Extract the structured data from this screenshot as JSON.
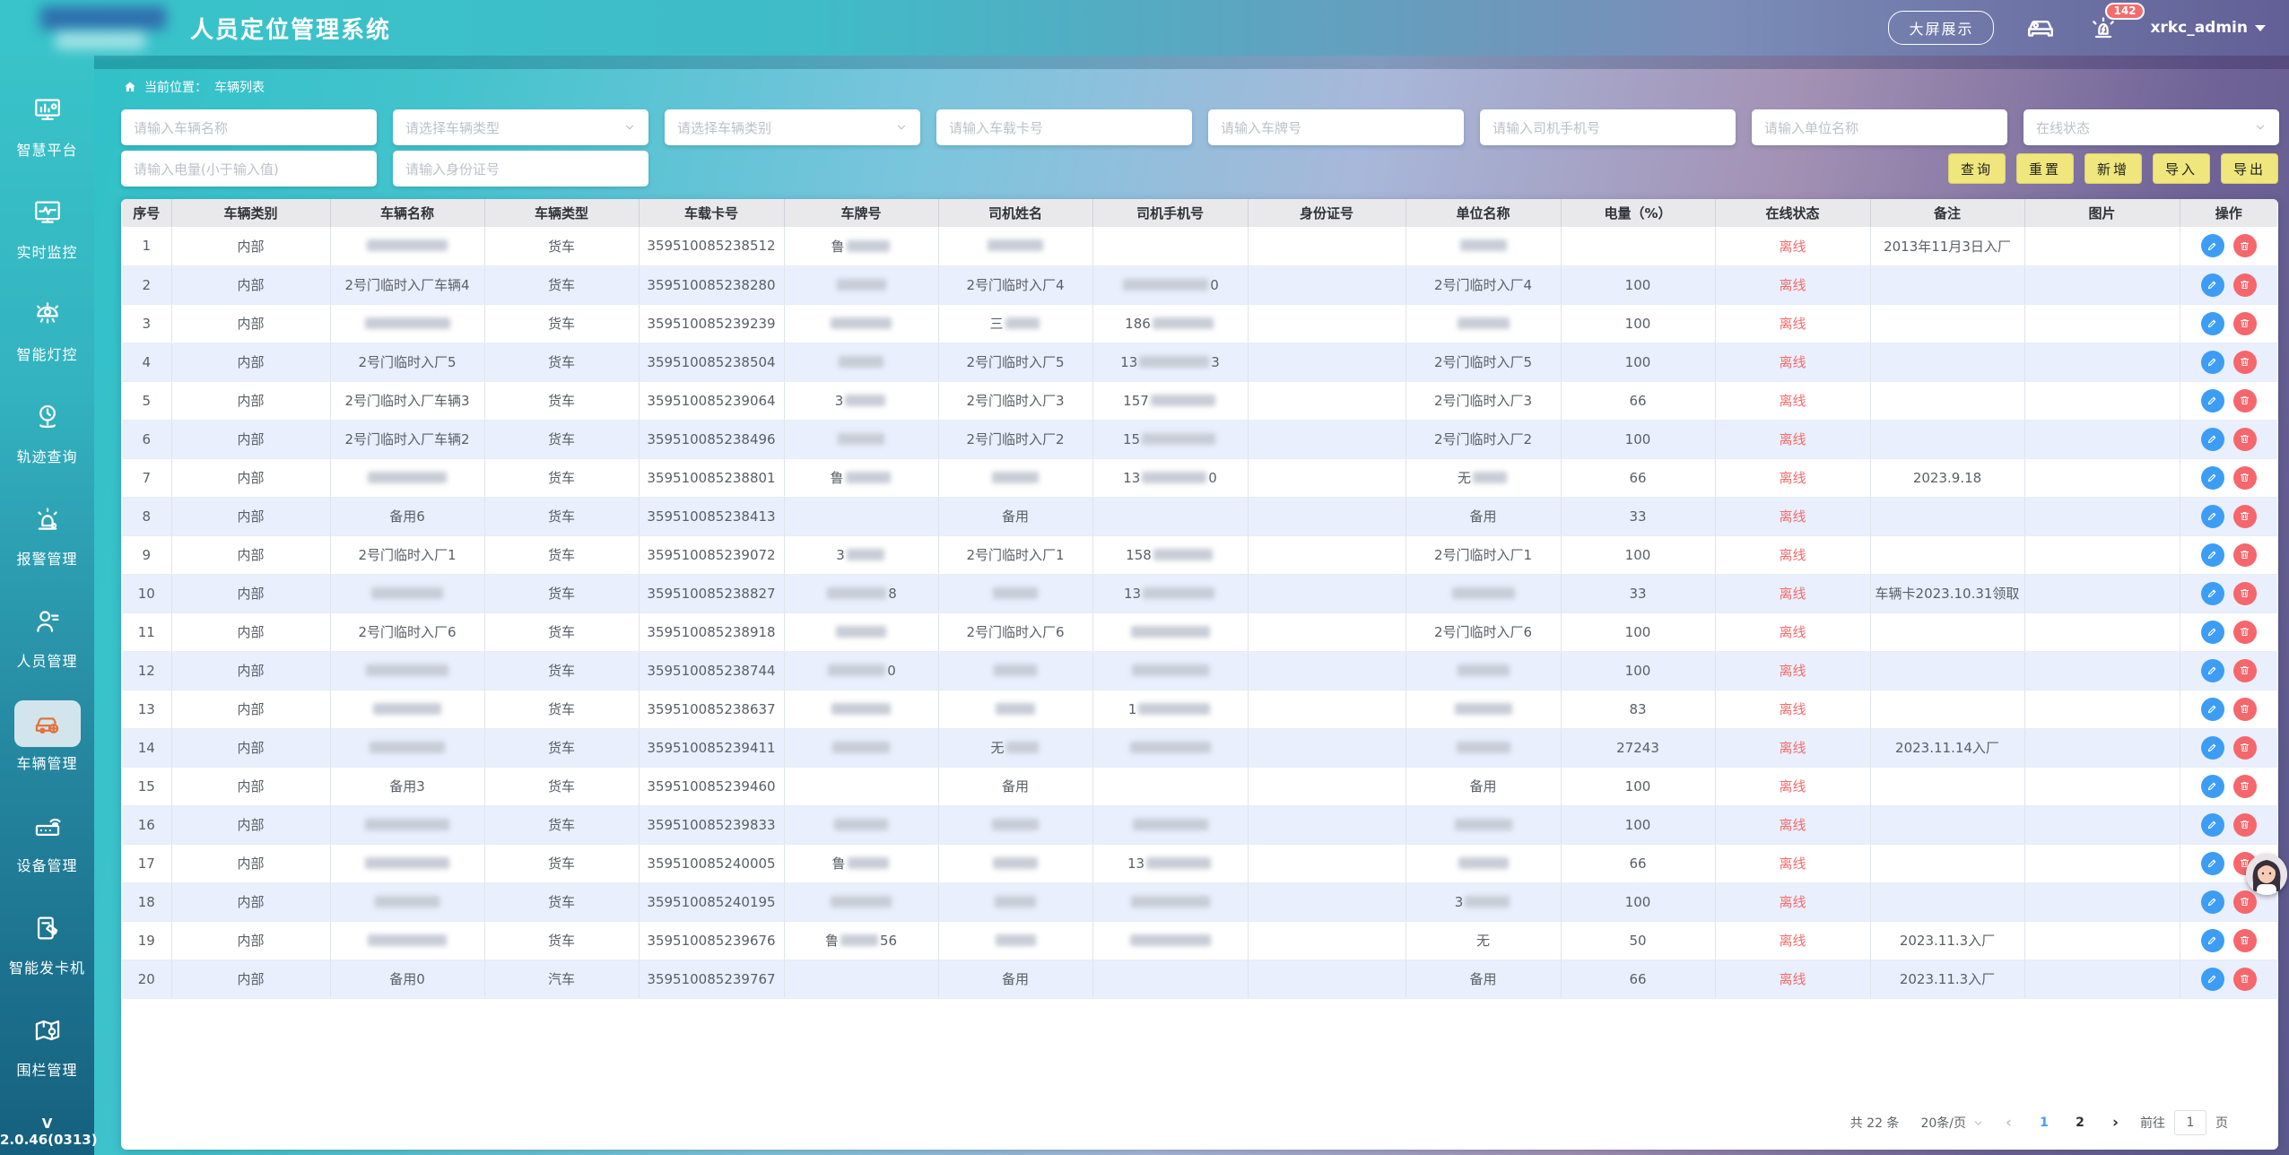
{
  "header": {
    "title": "人员定位管理系统",
    "big_screen_button": "大屏展示",
    "alarm_badge": "142",
    "username": "xrkc_admin",
    "icons": [
      "vehicle-monitor-icon",
      "alarm-siren-icon"
    ]
  },
  "sidebar": {
    "items": [
      {
        "label": "智慧平台",
        "icon": "dashboard-icon",
        "active": false
      },
      {
        "label": "实时监控",
        "icon": "monitor-icon",
        "active": false
      },
      {
        "label": "智能灯控",
        "icon": "light-icon",
        "active": false
      },
      {
        "label": "轨迹查询",
        "icon": "track-icon",
        "active": false
      },
      {
        "label": "报警管理",
        "icon": "alarm-icon",
        "active": false
      },
      {
        "label": "人员管理",
        "icon": "person-icon",
        "active": false
      },
      {
        "label": "车辆管理",
        "icon": "vehicle-icon",
        "active": true
      },
      {
        "label": "设备管理",
        "icon": "device-icon",
        "active": false
      },
      {
        "label": "智能发卡机",
        "icon": "card-machine-icon",
        "active": false
      },
      {
        "label": "围栏管理",
        "icon": "fence-icon",
        "active": false
      }
    ],
    "version": "V 2.0.46(0313)"
  },
  "breadcrumb": {
    "prefix": "当前位置：",
    "current": "车辆列表"
  },
  "filters": {
    "row1": [
      {
        "placeholder": "请输入车辆名称",
        "type": "input"
      },
      {
        "placeholder": "请选择车辆类型",
        "type": "select"
      },
      {
        "placeholder": "请选择车辆类别",
        "type": "select"
      },
      {
        "placeholder": "请输入车载卡号",
        "type": "input"
      },
      {
        "placeholder": "请输入车牌号",
        "type": "input"
      },
      {
        "placeholder": "请输入司机手机号",
        "type": "input"
      },
      {
        "placeholder": "请输入单位名称",
        "type": "input"
      },
      {
        "placeholder": "在线状态",
        "type": "select"
      }
    ],
    "row2": [
      {
        "placeholder": "请输入电量(小于输入值)",
        "type": "input"
      },
      {
        "placeholder": "请输入身份证号",
        "type": "input"
      }
    ],
    "buttons": [
      "查询",
      "重置",
      "新增",
      "导入",
      "导出"
    ]
  },
  "table": {
    "columns": [
      "序号",
      "车辆类别",
      "车辆名称",
      "车辆类型",
      "车载卡号",
      "车牌号",
      "司机姓名",
      "司机手机号",
      "身份证号",
      "单位名称",
      "电量（%）",
      "在线状态",
      "备注",
      "图片",
      "操作"
    ],
    "rows": [
      {
        "seq": "1",
        "cat": "内部",
        "name": {
          "b": 90
        },
        "vtype": "货车",
        "card": "359510085238512",
        "plate": {
          "p": "鲁",
          "b": 48
        },
        "driver": {
          "b": 62
        },
        "phone": "",
        "idcard": "",
        "unit": {
          "b": 52
        },
        "batt": "",
        "status": "离线",
        "remark": "2013年11月3日入厂",
        "pic": ""
      },
      {
        "seq": "2",
        "cat": "内部",
        "name": "2号门临时入厂车辆4",
        "vtype": "货车",
        "card": "359510085238280",
        "plate": {
          "b": 55
        },
        "driver": "2号门临时入厂4",
        "phone": {
          "b": 95,
          "s": "0"
        },
        "idcard": "",
        "unit": "2号门临时入厂4",
        "batt": "100",
        "status": "离线",
        "remark": "",
        "pic": ""
      },
      {
        "seq": "3",
        "cat": "内部",
        "name": {
          "b": 95
        },
        "vtype": "货车",
        "card": "359510085239239",
        "plate": {
          "b": 68
        },
        "driver": {
          "p": "三",
          "b": 38
        },
        "phone": {
          "p": "186",
          "b": 68
        },
        "idcard": "",
        "unit": {
          "b": 58
        },
        "batt": "100",
        "status": "离线",
        "remark": "",
        "pic": ""
      },
      {
        "seq": "4",
        "cat": "内部",
        "name": "2号门临时入厂5",
        "vtype": "货车",
        "card": "359510085238504",
        "plate": {
          "b": 50
        },
        "driver": "2号门临时入厂5",
        "phone": {
          "p": "13",
          "b": 78,
          "s": "3"
        },
        "idcard": "",
        "unit": "2号门临时入厂5",
        "batt": "100",
        "status": "离线",
        "remark": "",
        "pic": ""
      },
      {
        "seq": "5",
        "cat": "内部",
        "name": "2号门临时入厂车辆3",
        "vtype": "货车",
        "card": "359510085239064",
        "plate": {
          "p": "3",
          "b": 45
        },
        "driver": "2号门临时入厂3",
        "phone": {
          "p": "157",
          "b": 72
        },
        "idcard": "",
        "unit": "2号门临时入厂3",
        "batt": "66",
        "status": "离线",
        "remark": "",
        "pic": ""
      },
      {
        "seq": "6",
        "cat": "内部",
        "name": "2号门临时入厂车辆2",
        "vtype": "货车",
        "card": "359510085238496",
        "plate": {
          "b": 52
        },
        "driver": "2号门临时入厂2",
        "phone": {
          "p": "15",
          "b": 82
        },
        "idcard": "",
        "unit": "2号门临时入厂2",
        "batt": "100",
        "status": "离线",
        "remark": "",
        "pic": ""
      },
      {
        "seq": "7",
        "cat": "内部",
        "name": {
          "b": 88
        },
        "vtype": "货车",
        "card": "359510085238801",
        "plate": {
          "p": "鲁",
          "b": 50
        },
        "driver": {
          "b": 52
        },
        "phone": {
          "p": "13",
          "b": 72,
          "s": "0"
        },
        "idcard": "",
        "unit": {
          "p": "无",
          "b": 38
        },
        "batt": "66",
        "status": "离线",
        "remark": "2023.9.18",
        "pic": ""
      },
      {
        "seq": "8",
        "cat": "内部",
        "name": "备用6",
        "vtype": "货车",
        "card": "359510085238413",
        "plate": "",
        "driver": "备用",
        "phone": "",
        "idcard": "",
        "unit": "备用",
        "batt": "33",
        "status": "离线",
        "remark": "",
        "pic": ""
      },
      {
        "seq": "9",
        "cat": "内部",
        "name": "2号门临时入厂1",
        "vtype": "货车",
        "card": "359510085239072",
        "plate": {
          "p": "3",
          "b": 42
        },
        "driver": "2号门临时入厂1",
        "phone": {
          "p": "158",
          "b": 66
        },
        "idcard": "",
        "unit": "2号门临时入厂1",
        "batt": "100",
        "status": "离线",
        "remark": "",
        "pic": ""
      },
      {
        "seq": "10",
        "cat": "内部",
        "name": {
          "b": 80
        },
        "vtype": "货车",
        "card": "359510085238827",
        "plate": {
          "b": 66,
          "s": "8"
        },
        "driver": {
          "b": 50
        },
        "phone": {
          "p": "13",
          "b": 80
        },
        "idcard": "",
        "unit": {
          "b": 70
        },
        "batt": "33",
        "status": "离线",
        "remark": "车辆卡2023.10.31领取",
        "pic": ""
      },
      {
        "seq": "11",
        "cat": "内部",
        "name": "2号门临时入厂6",
        "vtype": "货车",
        "card": "359510085238918",
        "plate": {
          "b": 56
        },
        "driver": "2号门临时入厂6",
        "phone": {
          "b": 88
        },
        "idcard": "",
        "unit": "2号门临时入厂6",
        "batt": "100",
        "status": "离线",
        "remark": "",
        "pic": ""
      },
      {
        "seq": "12",
        "cat": "内部",
        "name": {
          "b": 92
        },
        "vtype": "货车",
        "card": "359510085238744",
        "plate": {
          "b": 64,
          "s": "0"
        },
        "driver": {
          "b": 48
        },
        "phone": {
          "b": 86
        },
        "idcard": "",
        "unit": {
          "b": 58
        },
        "batt": "100",
        "status": "离线",
        "remark": "",
        "pic": ""
      },
      {
        "seq": "13",
        "cat": "内部",
        "name": {
          "b": 76
        },
        "vtype": "货车",
        "card": "359510085238637",
        "plate": {
          "b": 66
        },
        "driver": {
          "b": 44
        },
        "phone": {
          "p": "1",
          "b": 80
        },
        "idcard": "",
        "unit": {
          "b": 64
        },
        "batt": "83",
        "status": "离线",
        "remark": "",
        "pic": ""
      },
      {
        "seq": "14",
        "cat": "内部",
        "name": {
          "b": 84
        },
        "vtype": "货车",
        "card": "359510085239411",
        "plate": {
          "b": 64
        },
        "driver": {
          "p": "无",
          "b": 36
        },
        "phone": {
          "b": 90
        },
        "idcard": "",
        "unit": {
          "b": 60
        },
        "batt": "27243",
        "status": "离线",
        "remark": "2023.11.14入厂",
        "pic": ""
      },
      {
        "seq": "15",
        "cat": "内部",
        "name": "备用3",
        "vtype": "货车",
        "card": "359510085239460",
        "plate": "",
        "driver": "备用",
        "phone": "",
        "idcard": "",
        "unit": "备用",
        "batt": "100",
        "status": "离线",
        "remark": "",
        "pic": ""
      },
      {
        "seq": "16",
        "cat": "内部",
        "name": {
          "b": 94
        },
        "vtype": "货车",
        "card": "359510085239833",
        "plate": {
          "b": 60
        },
        "driver": {
          "b": 52
        },
        "phone": {
          "b": 84
        },
        "idcard": "",
        "unit": {
          "b": 64
        },
        "batt": "100",
        "status": "离线",
        "remark": "",
        "pic": ""
      },
      {
        "seq": "17",
        "cat": "内部",
        "name": {
          "b": 94
        },
        "vtype": "货车",
        "card": "359510085240005",
        "plate": {
          "p": "鲁",
          "b": 46
        },
        "driver": {
          "b": 50
        },
        "phone": {
          "p": "13",
          "b": 72
        },
        "idcard": "",
        "unit": {
          "b": 56
        },
        "batt": "66",
        "status": "离线",
        "remark": "",
        "pic": ""
      },
      {
        "seq": "18",
        "cat": "内部",
        "name": {
          "b": 72
        },
        "vtype": "货车",
        "card": "359510085240195",
        "plate": {
          "b": 68
        },
        "driver": {
          "b": 46
        },
        "phone": {
          "b": 88
        },
        "idcard": "",
        "unit": {
          "p": "3",
          "b": 50
        },
        "batt": "100",
        "status": "离线",
        "remark": "",
        "pic": ""
      },
      {
        "seq": "19",
        "cat": "内部",
        "name": {
          "b": 88
        },
        "vtype": "货车",
        "card": "359510085239676",
        "plate": {
          "p": "鲁",
          "b": 42,
          "s": "56"
        },
        "driver": {
          "b": 45
        },
        "phone": {
          "b": 90
        },
        "idcard": "",
        "unit": "无",
        "batt": "50",
        "status": "离线",
        "remark": "2023.11.3入厂",
        "pic": ""
      },
      {
        "seq": "20",
        "cat": "内部",
        "name": "备用0",
        "vtype": "汽车",
        "card": "359510085239767",
        "plate": "",
        "driver": "备用",
        "phone": "",
        "idcard": "",
        "unit": "备用",
        "batt": "66",
        "status": "离线",
        "remark": "2023.11.3入厂",
        "pic": ""
      }
    ]
  },
  "pagination": {
    "total": "共 22 条",
    "page_size": "20条/页",
    "pages": [
      "1",
      "2"
    ],
    "active_page": "1",
    "goto_prefix": "前往",
    "goto_value": "1",
    "goto_suffix": "页"
  },
  "colors": {
    "accent_teal": "#35c1c7",
    "accent_purple": "#5e5b92",
    "button_yellow": "#efe67d",
    "status_offline": "#f56c6c",
    "edit_blue": "#3d9df5",
    "delete_red": "#f5676c",
    "active_icon_orange": "#e2733c",
    "row_alt_blue": "#e9effc"
  }
}
